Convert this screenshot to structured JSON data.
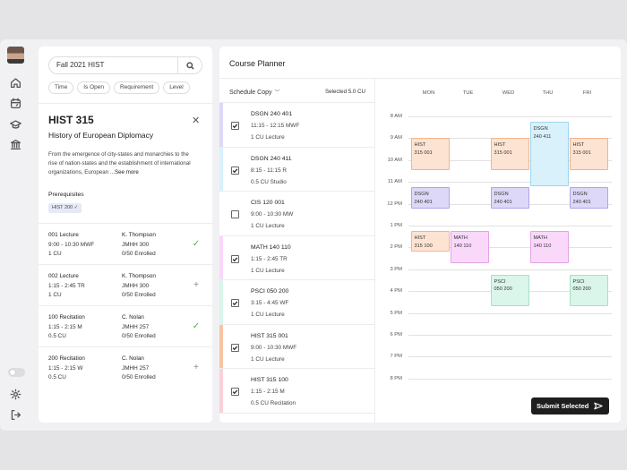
{
  "search": {
    "query": "Fall 2021  HIST"
  },
  "filters": [
    "Time",
    "Is Open",
    "Requirement",
    "Level"
  ],
  "course": {
    "code": "HIST 315",
    "title": "History of European Diplomacy",
    "description": "From the emergence of city-states and monarchies to the rise of nation-states and the establishment of international organizations, European ...",
    "see_more": "See more",
    "prereq_heading": "Prerequisites",
    "prereq": "HIST 200"
  },
  "sections": [
    {
      "name": "001 Lecture",
      "time": "9:00 - 10:30 MWF",
      "credits": "1 CU",
      "instructor": "K. Thompson",
      "room": "JMHH 300",
      "enrolled": "0/50 Enrolled",
      "added": true
    },
    {
      "name": "002 Lecture",
      "time": "1:15 - 2:45 TR",
      "credits": "1 CU",
      "instructor": "K. Thompson",
      "room": "JMHH 300",
      "enrolled": "0/50 Enrolled",
      "added": false
    },
    {
      "name": "100 Recitation",
      "time": "1:15 - 2:15 M",
      "credits": "0.5 CU",
      "instructor": "C. Nolan",
      "room": "JMHH 257",
      "enrolled": "0/50 Enrolled",
      "added": true
    },
    {
      "name": "200 Recitation",
      "time": "1:15 - 2:15 W",
      "credits": "0.5 CU",
      "instructor": "C. Nolan",
      "room": "JMHH 257",
      "enrolled": "0/50 Enrolled",
      "added": false
    }
  ],
  "planner": {
    "title": "Course Planner",
    "schedule_name": "Schedule Copy",
    "selected_credits": "Selected 5.0 CU",
    "submit_label": "Submit Selected",
    "courses": [
      {
        "code": "DSGN 240 401",
        "time": "11:15 - 12:15 MWF",
        "type": "1 CU Lecture",
        "checked": true,
        "color": "#ddd8f8"
      },
      {
        "code": "DSGN 240 411",
        "time": "8:15 - 11:15 R",
        "type": "0.5 CU Studio",
        "checked": true,
        "color": "#d9f1fb"
      },
      {
        "code": "CIS 120 001",
        "time": "9:00 - 10:30 MW",
        "type": "1 CU Lecture",
        "checked": false,
        "color": ""
      },
      {
        "code": "MATH 140 110",
        "time": "1:15 - 2:45 TR",
        "type": "1 CU Lecture",
        "checked": true,
        "color": "#f9d8f9"
      },
      {
        "code": "PSCI 050 200",
        "time": "3:15 - 4:45 WF",
        "type": "1 CU Lecture",
        "checked": true,
        "color": "#daf5ea"
      },
      {
        "code": "HIST 315 001",
        "time": "9:00 - 10:30 MWF",
        "type": "1 CU Lecture",
        "checked": true,
        "color": "#f6c4a3"
      },
      {
        "code": "HIST 315 100",
        "time": "1:15 - 2:15 M",
        "type": "0.5 CU Recitation",
        "checked": true,
        "color": "#fad1d9"
      }
    ],
    "days": [
      "MON",
      "TUE",
      "WED",
      "THU",
      "FRI"
    ],
    "hours": [
      "8 AM",
      "9 AM",
      "10 AM",
      "11 AM",
      "12 PM",
      "1 PM",
      "2 PM",
      "3 PM",
      "4 PM",
      "5 PM",
      "6 PM",
      "7 PM",
      "8 PM"
    ],
    "events": [
      {
        "name": "HIST",
        "section": "315 001",
        "day": 0,
        "start": 9,
        "end": 10.5,
        "style": "hist"
      },
      {
        "name": "HIST",
        "section": "315 001",
        "day": 2,
        "start": 9,
        "end": 10.5,
        "style": "hist"
      },
      {
        "name": "HIST",
        "section": "315 001",
        "day": 4,
        "start": 9,
        "end": 10.5,
        "style": "hist"
      },
      {
        "name": "DSGN",
        "section": "240 411",
        "day": 3,
        "start": 8.25,
        "end": 11.25,
        "style": "dsgn-s"
      },
      {
        "name": "DSGN",
        "section": "240 401",
        "day": 0,
        "start": 11.25,
        "end": 12.25,
        "style": "dsgn-l"
      },
      {
        "name": "DSGN",
        "section": "240 401",
        "day": 2,
        "start": 11.25,
        "end": 12.25,
        "style": "dsgn-l"
      },
      {
        "name": "DSGN",
        "section": "240 401",
        "day": 4,
        "start": 11.25,
        "end": 12.25,
        "style": "dsgn-l"
      },
      {
        "name": "HIST",
        "section": "315 100",
        "day": 0,
        "start": 13.25,
        "end": 14.25,
        "style": "hist"
      },
      {
        "name": "MATH",
        "section": "140 110",
        "day": 1,
        "start": 13.25,
        "end": 14.75,
        "style": "math"
      },
      {
        "name": "MATH",
        "section": "140 110",
        "day": 3,
        "start": 13.25,
        "end": 14.75,
        "style": "math"
      },
      {
        "name": "PSCI",
        "section": "050 200",
        "day": 2,
        "start": 15.25,
        "end": 16.75,
        "style": "psci"
      },
      {
        "name": "PSCI",
        "section": "050 200",
        "day": 4,
        "start": 15.25,
        "end": 16.75,
        "style": "psci"
      }
    ]
  },
  "icons": {
    "home": "home-icon",
    "calendar": "calendar-icon",
    "grad": "graduation-cap-icon",
    "bank": "institution-icon",
    "settings": "gear-icon",
    "logout": "logout-icon"
  }
}
